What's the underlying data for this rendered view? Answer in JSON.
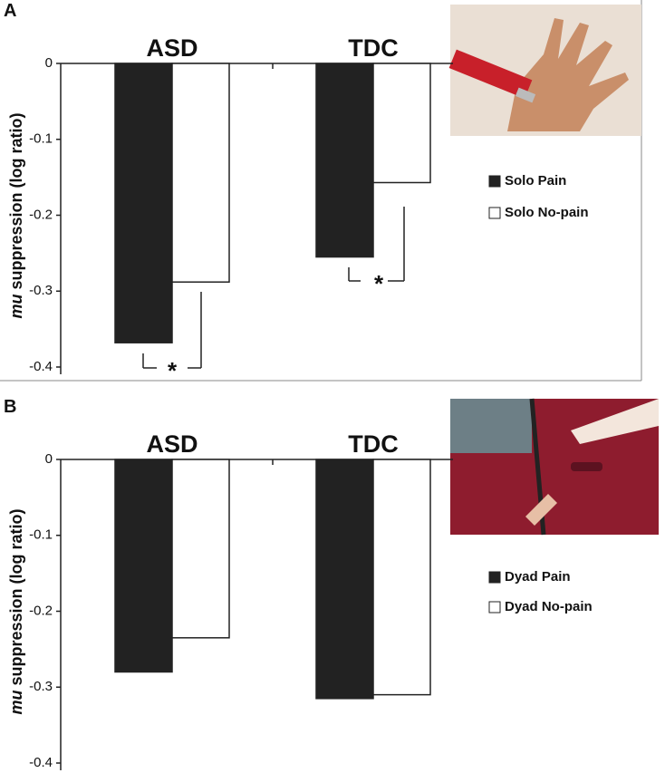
{
  "chart_data": [
    {
      "type": "bar",
      "panel": "A",
      "ylabel_italic": "mu",
      "ylabel": "suppression (log ratio)",
      "categories": [
        "ASD",
        "TDC"
      ],
      "series": [
        {
          "name": "Solo Pain",
          "color": "#222222",
          "values": [
            -0.368,
            -0.255
          ]
        },
        {
          "name": "Solo No-pain",
          "color": "#ffffff",
          "values": [
            -0.288,
            -0.157
          ]
        }
      ],
      "ylim": [
        -0.4,
        0
      ],
      "yticks": [
        0,
        -0.1,
        -0.2,
        -0.3,
        -0.4
      ],
      "annotations": [
        "*",
        "*"
      ]
    },
    {
      "type": "bar",
      "panel": "B",
      "ylabel_italic": "mu",
      "ylabel": "suppression (log ratio)",
      "categories": [
        "ASD",
        "TDC"
      ],
      "series": [
        {
          "name": "Dyad Pain",
          "color": "#222222",
          "values": [
            -0.28,
            -0.315
          ]
        },
        {
          "name": "Dyad No-pain",
          "color": "#ffffff",
          "values": [
            -0.235,
            -0.31
          ]
        }
      ],
      "ylim": [
        -0.4,
        0
      ],
      "yticks": [
        0,
        -0.1,
        -0.2,
        -0.3,
        -0.4
      ]
    }
  ]
}
